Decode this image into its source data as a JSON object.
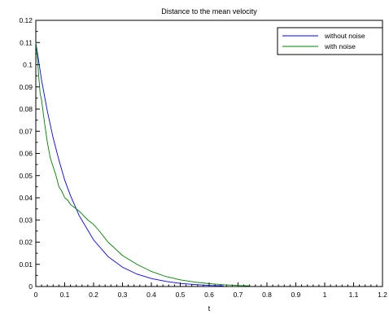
{
  "chart_data": {
    "type": "line",
    "title": "Distance to the mean velocity",
    "xlabel": "t",
    "ylabel": "",
    "xlim": [
      0,
      1.2
    ],
    "ylim": [
      0,
      0.12
    ],
    "xticks": [
      "0",
      "0.1",
      "0.2",
      "0.3",
      "0.4",
      "0.5",
      "0.6",
      "0.7",
      "0.8",
      "0.9",
      "1",
      "1.1",
      "1.2"
    ],
    "yticks": [
      "0",
      "0.01",
      "0.02",
      "0.03",
      "0.04",
      "0.05",
      "0.06",
      "0.07",
      "0.08",
      "0.09",
      "0.1",
      "0.11",
      "0.12"
    ],
    "grid": false,
    "legend_position": "top-right",
    "series": [
      {
        "name": "without noise",
        "color": "#0000ff",
        "x": [
          0,
          0.02,
          0.04,
          0.06,
          0.08,
          0.1,
          0.12,
          0.15,
          0.2,
          0.25,
          0.3,
          0.35,
          0.4,
          0.45,
          0.5,
          0.55,
          0.6,
          0.65
        ],
        "y": [
          0.11,
          0.093,
          0.079,
          0.067,
          0.057,
          0.048,
          0.041,
          0.032,
          0.021,
          0.0135,
          0.0087,
          0.0056,
          0.0036,
          0.0023,
          0.0014,
          0.0009,
          0.0005,
          0.0003
        ]
      },
      {
        "name": "with noise",
        "color": "#008000",
        "x": [
          0,
          0.005,
          0.01,
          0.015,
          0.02,
          0.03,
          0.04,
          0.05,
          0.06,
          0.07,
          0.08,
          0.09,
          0.1,
          0.11,
          0.12,
          0.15,
          0.18,
          0.2,
          0.22,
          0.25,
          0.3,
          0.35,
          0.4,
          0.45,
          0.5,
          0.55,
          0.6,
          0.65,
          0.7,
          0.74
        ],
        "y": [
          0.11,
          0.104,
          0.095,
          0.087,
          0.084,
          0.074,
          0.065,
          0.058,
          0.054,
          0.05,
          0.045,
          0.043,
          0.04,
          0.039,
          0.037,
          0.034,
          0.03,
          0.028,
          0.025,
          0.02,
          0.014,
          0.01,
          0.0068,
          0.0045,
          0.003,
          0.002,
          0.0013,
          0.0008,
          0.0005,
          0.0003
        ]
      }
    ]
  }
}
